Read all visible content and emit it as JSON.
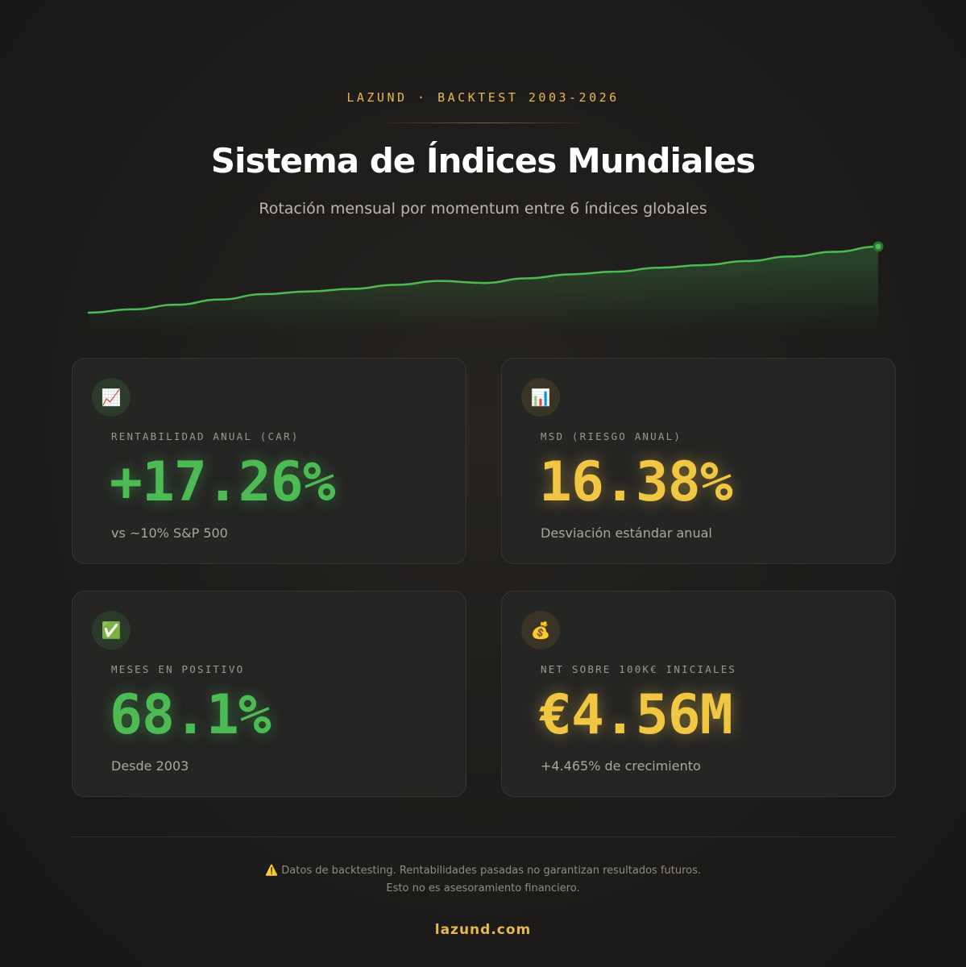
{
  "header": {
    "eyebrow": "LAZUND · BACKTEST 2003-2026",
    "title": "Sistema de Índices Mundiales",
    "subtitle": "Rotación mensual por momentum entre 6 índices globales"
  },
  "colors": {
    "accent_gold": "#e8b94a",
    "value_green": "#4cbb54",
    "value_gold": "#f1c642",
    "line_green": "#4cbb54"
  },
  "sparkline": {
    "type": "line",
    "values": [
      0,
      5,
      12,
      20,
      28,
      32,
      36,
      42,
      48,
      45,
      52,
      58,
      62,
      68,
      72,
      78,
      85,
      92,
      100
    ]
  },
  "cards": [
    {
      "icon": "chart-increasing-icon",
      "icon_glyph": "📈",
      "label": "RENTABILIDAD ANUAL (CAR)",
      "value": "+17.26%",
      "note": "vs ~10% S&P 500"
    },
    {
      "icon": "bar-chart-icon",
      "icon_glyph": "📊",
      "label": "MSD (RIESGO ANUAL)",
      "value": "16.38%",
      "note": "Desviación estándar anual"
    },
    {
      "icon": "check-mark-icon",
      "icon_glyph": "✅",
      "label": "MESES EN POSITIVO",
      "value": "68.1%",
      "note": "Desde 2003"
    },
    {
      "icon": "money-bag-icon",
      "icon_glyph": "💰",
      "label": "NET SOBRE 100K€ INICIALES",
      "value": "€4.56M",
      "note": "+4.465% de crecimiento"
    }
  ],
  "footer": {
    "warning_icon": "⚠️",
    "disclaimer_line1": "Datos de backtesting. Rentabilidades pasadas no garantizan resultados futuros.",
    "disclaimer_line2": "Esto no es asesoramiento financiero.",
    "link": "lazund.com"
  }
}
